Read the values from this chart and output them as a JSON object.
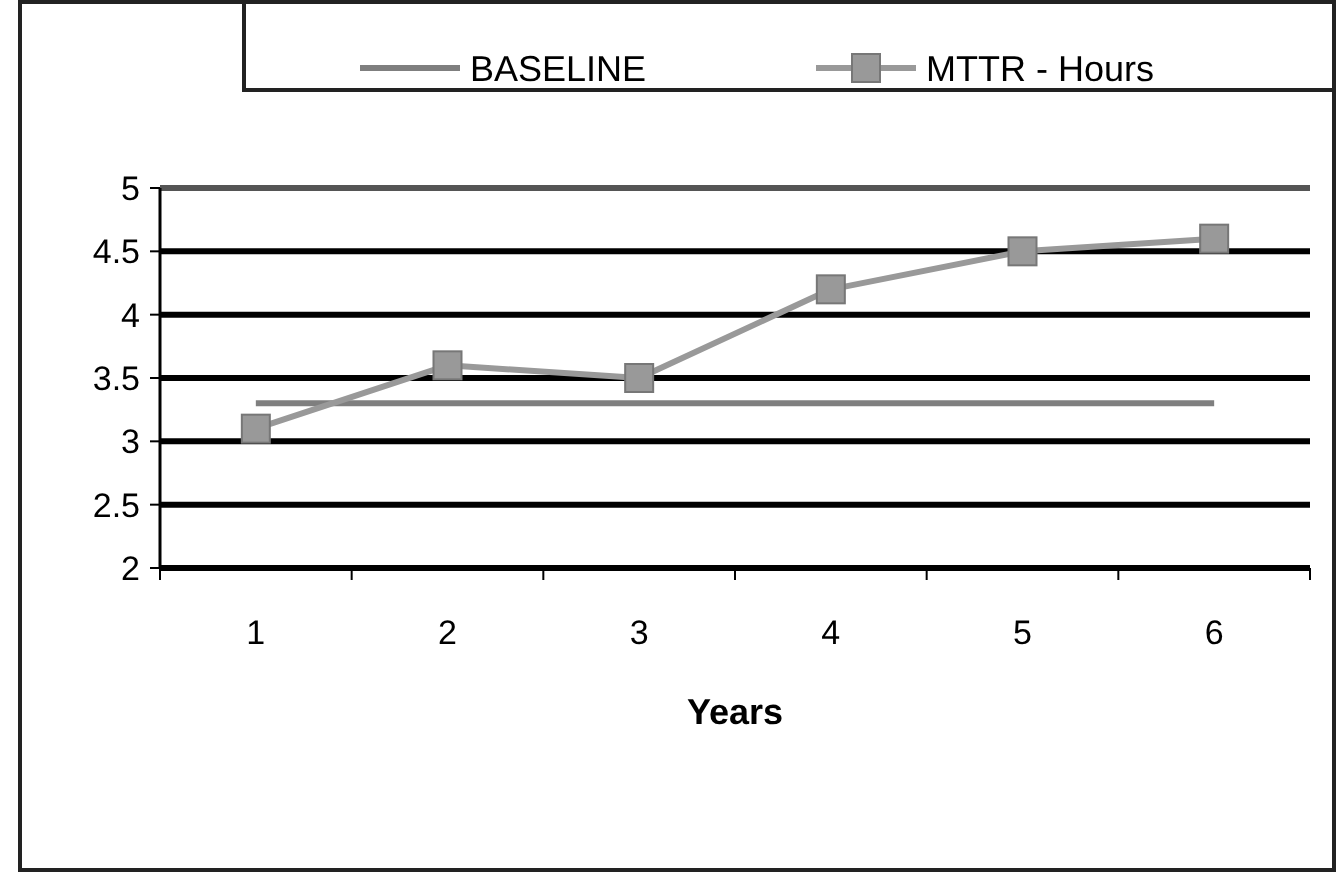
{
  "chart_data": {
    "type": "line",
    "xlabel": "Years",
    "categories": [
      "1",
      "2",
      "3",
      "4",
      "5",
      "6"
    ],
    "series": [
      {
        "name": "BASELINE",
        "color": "#7f7f7f",
        "marker": "none",
        "values": [
          3.3,
          3.3,
          3.3,
          3.3,
          3.3,
          3.3
        ]
      },
      {
        "name": "MTTR - Hours",
        "color": "#999999",
        "marker": "square",
        "values": [
          3.1,
          3.6,
          3.5,
          4.2,
          4.5,
          4.6
        ]
      }
    ],
    "ylim": [
      2,
      5
    ],
    "yticks": [
      2,
      2.5,
      3,
      3.5,
      4,
      4.5,
      5
    ],
    "grid": "y",
    "legend": "top"
  }
}
